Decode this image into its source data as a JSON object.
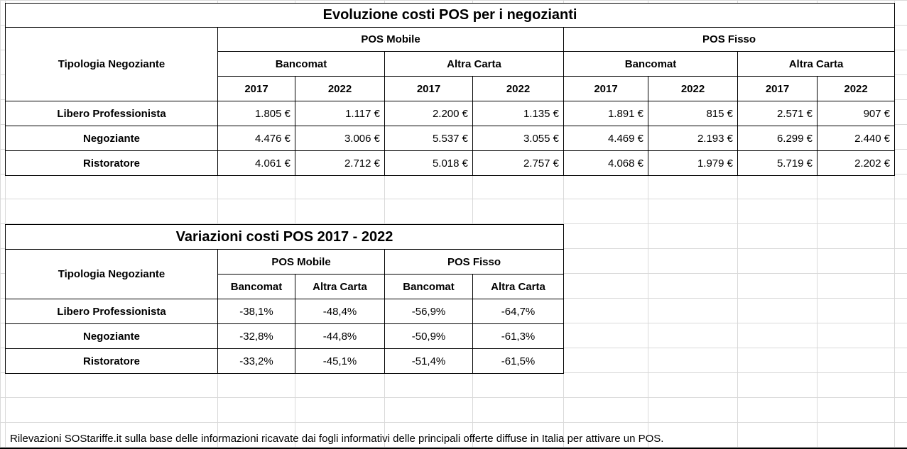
{
  "table1": {
    "title": "Evoluzione costi POS per i negozianti",
    "row_header": "Tipologia Negoziante",
    "groups": [
      "POS Mobile",
      "POS Fisso"
    ],
    "subgroups": [
      "Bancomat",
      "Altra Carta",
      "Bancomat",
      "Altra Carta"
    ],
    "years": [
      "2017",
      "2022",
      "2017",
      "2022",
      "2017",
      "2022",
      "2017",
      "2022"
    ],
    "rows": [
      {
        "label": "Libero Professionista",
        "values": [
          "1.805 €",
          "1.117 €",
          "2.200 €",
          "1.135 €",
          "1.891 €",
          "815 €",
          "2.571 €",
          "907 €"
        ]
      },
      {
        "label": "Negoziante",
        "values": [
          "4.476 €",
          "3.006 €",
          "5.537 €",
          "3.055 €",
          "4.469 €",
          "2.193 €",
          "6.299 €",
          "2.440 €"
        ]
      },
      {
        "label": "Ristoratore",
        "values": [
          "4.061 €",
          "2.712 €",
          "5.018 €",
          "2.757 €",
          "4.068 €",
          "1.979 €",
          "5.719 €",
          "2.202 €"
        ]
      }
    ]
  },
  "table2": {
    "title": "Variazioni costi POS 2017 - 2022",
    "row_header": "Tipologia Negoziante",
    "groups": [
      "POS Mobile",
      "POS Fisso"
    ],
    "subgroups": [
      "Bancomat",
      "Altra Carta",
      "Bancomat",
      "Altra Carta"
    ],
    "rows": [
      {
        "label": "Libero Professionista",
        "values": [
          "-38,1%",
          "-48,4%",
          "-56,9%",
          "-64,7%"
        ]
      },
      {
        "label": "Negoziante",
        "values": [
          "-32,8%",
          "-44,8%",
          "-50,9%",
          "-61,3%"
        ]
      },
      {
        "label": "Ristoratore",
        "values": [
          "-33,2%",
          "-45,1%",
          "-51,4%",
          "-61,5%"
        ]
      }
    ]
  },
  "footer": "Rilevazioni SOStariffe.it sulla base delle informazioni ricavate dai fogli informativi delle principali offerte diffuse in Italia per attivare un POS."
}
